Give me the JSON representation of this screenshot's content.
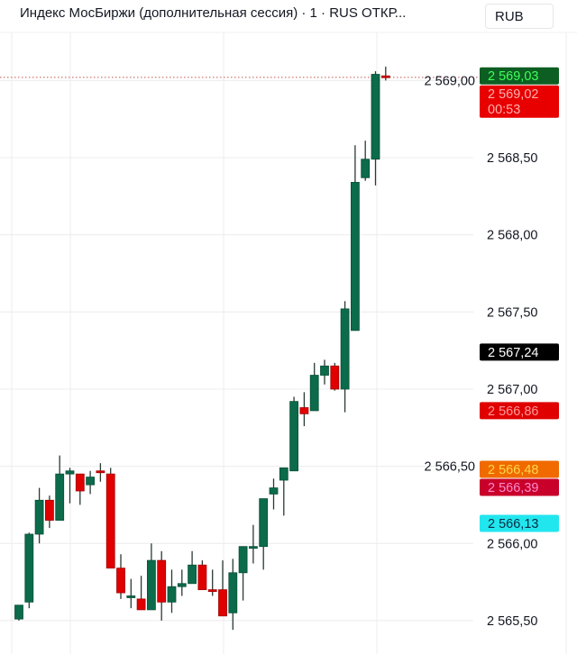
{
  "header": {
    "title": "Индекс МосБиржи (дополнительная сессия) · 1 · RUS  ОТКР...",
    "currency": "RUB"
  },
  "chart_data": {
    "type": "candlestick",
    "interval": "1",
    "ylim": [
      2565.4,
      2569.45
    ],
    "y_ticks": [
      2565.5,
      2566.0,
      2566.5,
      2567.0,
      2567.5,
      2568.0,
      2568.5,
      2569.0
    ],
    "y_tick_labels": [
      "2 565,50",
      "2 566,00",
      "2 566,50",
      "2 567,00",
      "2 567,50",
      "2 568,00",
      "2 568,50",
      "2 569,00"
    ],
    "grid": true,
    "up_color": "#0b6b4a",
    "down_color": "#e00000",
    "candles": [
      [
        2565.51,
        2565.6,
        2565.5,
        2565.6
      ],
      [
        2565.62,
        2566.07,
        2565.58,
        2566.06
      ],
      [
        2566.06,
        2566.36,
        2566.0,
        2566.28
      ],
      [
        2566.28,
        2566.31,
        2566.1,
        2566.15
      ],
      [
        2566.15,
        2566.57,
        2566.15,
        2566.45
      ],
      [
        2566.45,
        2566.49,
        2566.26,
        2566.47
      ],
      [
        2566.45,
        2566.45,
        2566.25,
        2566.34
      ],
      [
        2566.38,
        2566.47,
        2566.32,
        2566.43
      ],
      [
        2566.47,
        2566.52,
        2566.4,
        2566.46
      ],
      [
        2566.45,
        2566.49,
        2565.84,
        2565.84
      ],
      [
        2565.84,
        2565.93,
        2565.64,
        2565.68
      ],
      [
        2565.65,
        2565.77,
        2565.58,
        2565.66
      ],
      [
        2565.64,
        2565.79,
        2565.57,
        2565.57
      ],
      [
        2565.57,
        2566.0,
        2565.57,
        2565.89
      ],
      [
        2565.89,
        2565.95,
        2565.5,
        2565.62
      ],
      [
        2565.62,
        2565.83,
        2565.55,
        2565.72
      ],
      [
        2565.72,
        2565.83,
        2565.66,
        2565.74
      ],
      [
        2565.74,
        2565.95,
        2565.74,
        2565.86
      ],
      [
        2565.86,
        2565.89,
        2565.7,
        2565.7
      ],
      [
        2565.7,
        2565.83,
        2565.66,
        2565.69
      ],
      [
        2565.7,
        2565.89,
        2565.53,
        2565.53
      ],
      [
        2565.55,
        2565.9,
        2565.44,
        2565.81
      ],
      [
        2565.81,
        2565.98,
        2565.63,
        2565.98
      ],
      [
        2565.98,
        2566.12,
        2565.87,
        2565.98
      ],
      [
        2565.98,
        2566.29,
        2565.83,
        2566.29
      ],
      [
        2566.32,
        2566.42,
        2566.22,
        2566.36
      ],
      [
        2566.41,
        2566.49,
        2566.18,
        2566.49
      ],
      [
        2566.47,
        2566.95,
        2566.47,
        2566.92
      ],
      [
        2566.88,
        2566.98,
        2566.76,
        2566.84
      ],
      [
        2566.86,
        2567.17,
        2566.86,
        2567.09
      ],
      [
        2567.09,
        2567.19,
        2567.03,
        2567.15
      ],
      [
        2567.15,
        2567.17,
        2566.99,
        2567.0
      ],
      [
        2567.0,
        2567.57,
        2566.85,
        2567.52
      ],
      [
        2567.38,
        2568.58,
        2567.38,
        2568.34
      ],
      [
        2568.37,
        2568.61,
        2568.35,
        2568.49
      ],
      [
        2568.49,
        2569.06,
        2568.32,
        2569.04
      ],
      [
        2569.03,
        2569.09,
        2569.0,
        2569.02
      ]
    ],
    "last_price_line": 2569.02,
    "price_labels": [
      {
        "value": 2569.03,
        "text": "2 569,03",
        "bg": "#0d5e22",
        "fg": "#3dff5a"
      },
      {
        "value": 2569.02,
        "text": "2 569,02",
        "sub": "00:53",
        "bg": "#e80000",
        "fg": "#ffb0b0"
      },
      {
        "value": 2567.24,
        "text": "2 567,24",
        "bg": "#000000",
        "fg": "#ffffff"
      },
      {
        "value": 2566.86,
        "text": "2 566,86",
        "bg": "#e00000",
        "fg": "#ff9a9a"
      },
      {
        "value": 2566.48,
        "text": "2 566,48",
        "bg": "#f06a00",
        "fg": "#ffd84a"
      },
      {
        "value": 2566.39,
        "text": "2 566,39",
        "bg": "#c8002a",
        "fg": "#ff8ad0"
      },
      {
        "value": 2566.13,
        "text": "2 566,13",
        "bg": "#22e6ee",
        "fg": "#0b2a40"
      }
    ]
  }
}
